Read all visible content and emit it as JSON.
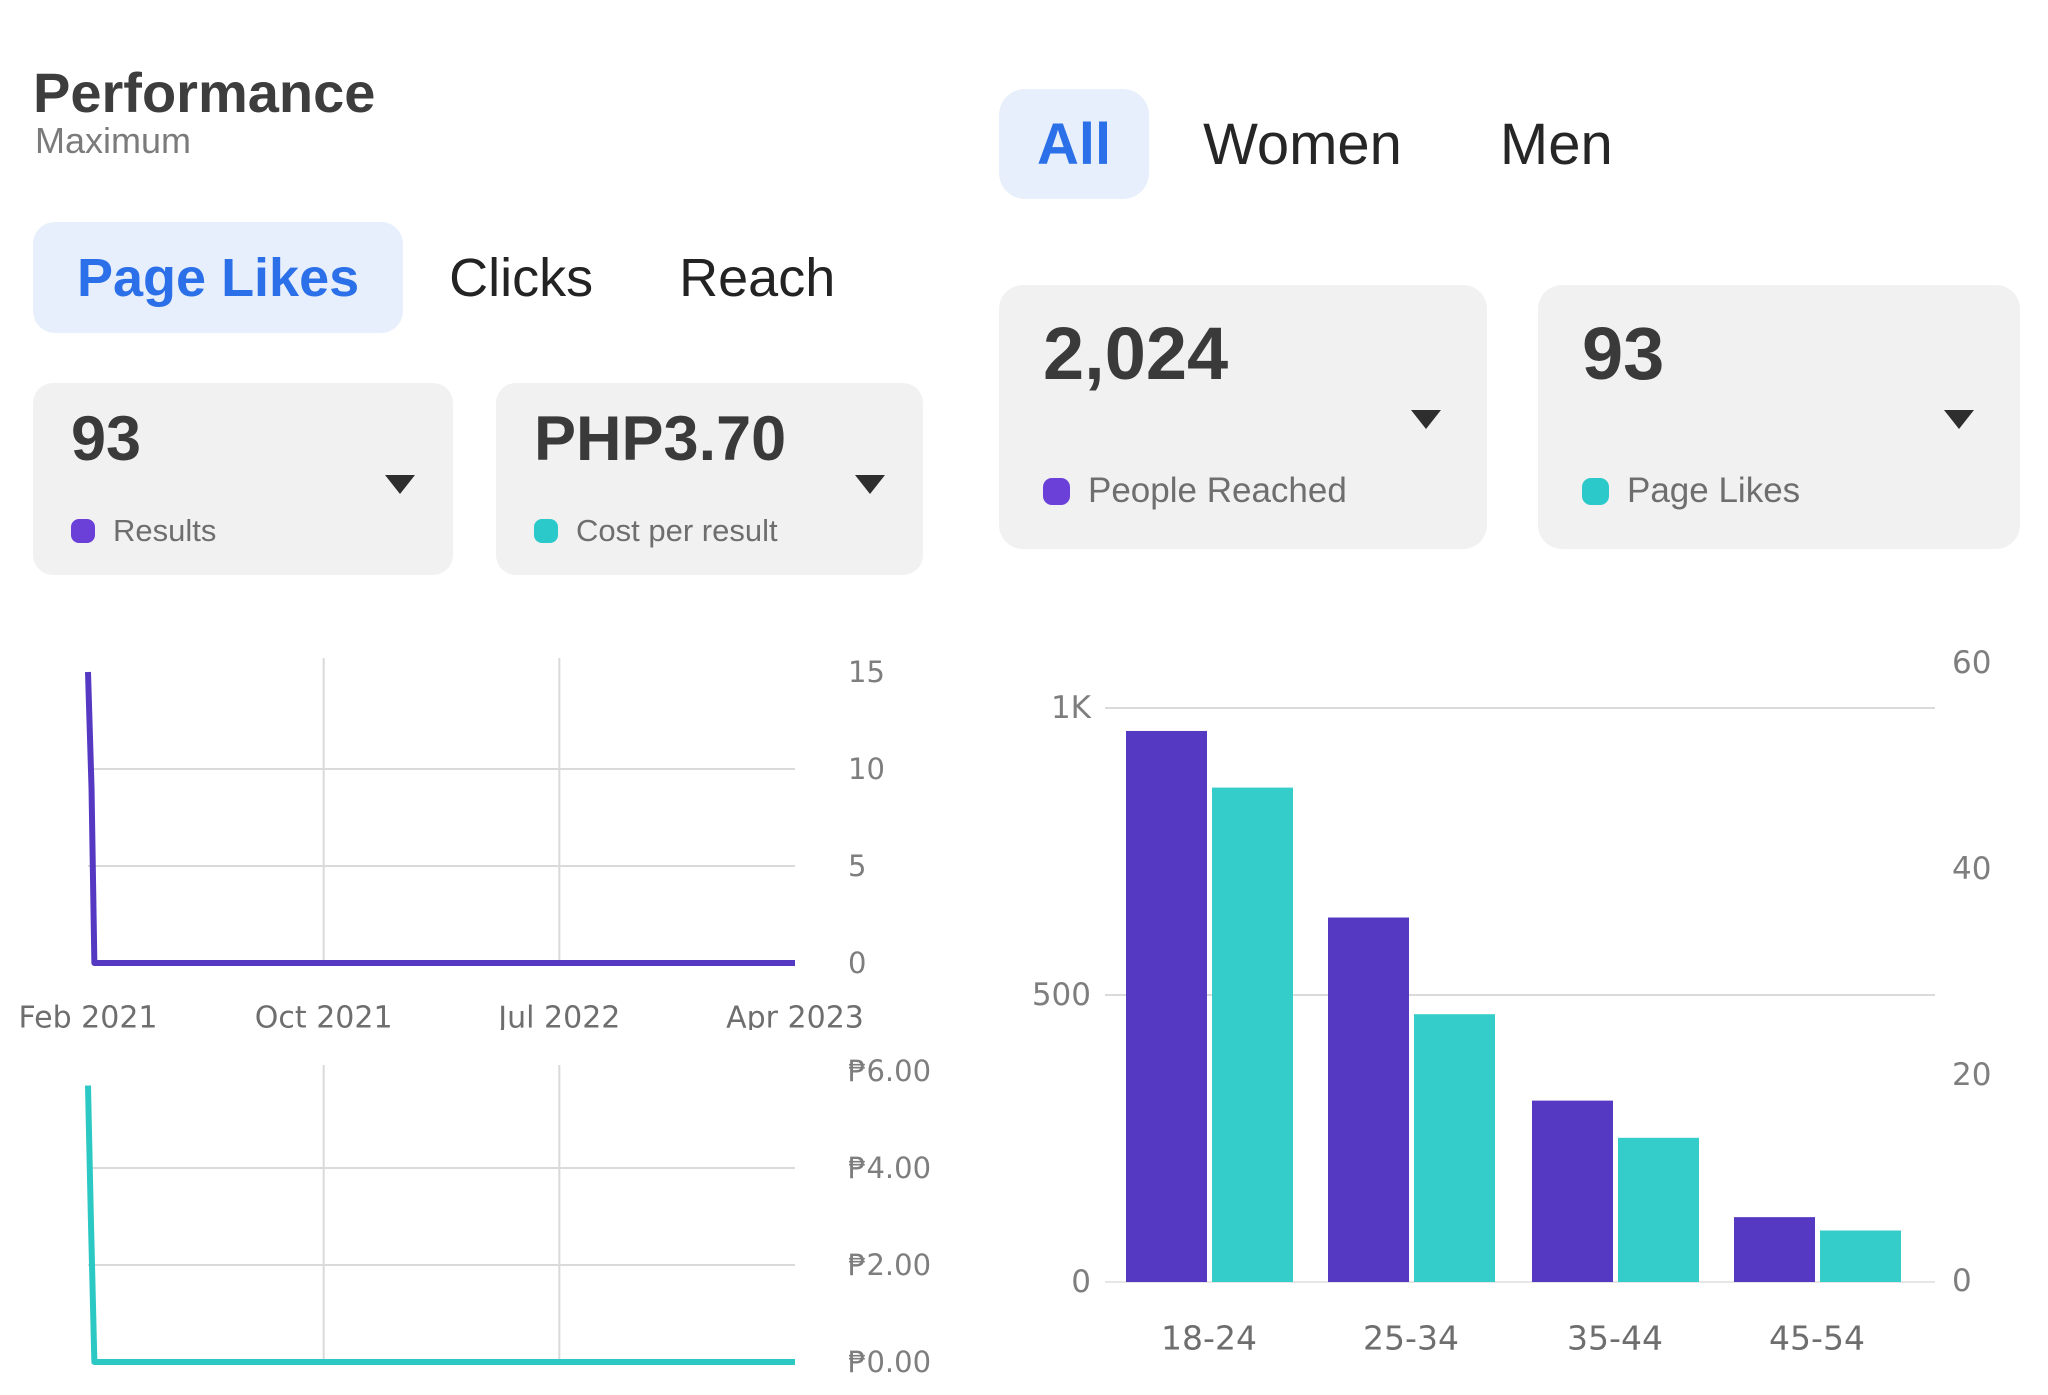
{
  "left_panel": {
    "title": "Performance",
    "subtitle": "Maximum",
    "tabs": [
      {
        "label": "Page Likes",
        "active": true
      },
      {
        "label": "Clicks",
        "active": false
      },
      {
        "label": "Reach",
        "active": false
      }
    ],
    "cards": [
      {
        "value": "93",
        "label": "Results",
        "dot_color": "#6b40d8"
      },
      {
        "value": "PHP3.70",
        "label": "Cost per result",
        "dot_color": "#2bc9c9"
      }
    ]
  },
  "right_panel": {
    "tabs": [
      {
        "label": "All",
        "active": true
      },
      {
        "label": "Women",
        "active": false
      },
      {
        "label": "Men",
        "active": false
      }
    ],
    "cards": [
      {
        "value": "2,024",
        "label": "People Reached",
        "dot_color": "#6b40d8"
      },
      {
        "value": "93",
        "label": "Page Likes",
        "dot_color": "#2bc9c9"
      }
    ]
  },
  "colors": {
    "accent_blue": "#2b70e8",
    "pill_background": "#e7effc",
    "card_background": "#f1f1f1",
    "purple_series": "#5639c2",
    "teal_series": "#35cdc9",
    "gridline": "#dadada",
    "axis_text": "#7e7e7e"
  },
  "chart_data": [
    {
      "id": "results-line",
      "type": "line",
      "series_name": "Results",
      "color": "#5639c2",
      "x_tick_labels": [
        "Feb 2021",
        "Oct 2021",
        "Jul 2022",
        "Apr 2023"
      ],
      "y_ticks": [
        15,
        10,
        5,
        0
      ],
      "y_grid": [
        10,
        5
      ],
      "ylim": [
        0,
        15
      ],
      "points_pct": [
        [
          0,
          15
        ],
        [
          0.5,
          9
        ],
        [
          0.9,
          0
        ],
        [
          100,
          0
        ]
      ],
      "reading": "Spikes to 15 at the start (Feb 2021) then drops to 0 and stays flat through Apr 2023"
    },
    {
      "id": "cost-per-result-line",
      "type": "line",
      "series_name": "Cost per result",
      "color": "#2cc8c4",
      "x_tick_labels": [
        "Feb 2021",
        "Oct 2021",
        "Jul 2022",
        "Apr 2023"
      ],
      "y_ticks": [
        6,
        4,
        2,
        0
      ],
      "y_tick_labels": [
        "₱6.00",
        "₱4.00",
        "₱2.00",
        "₱0.00"
      ],
      "y_grid": [
        4,
        2
      ],
      "ylim": [
        0,
        6
      ],
      "points_pct": [
        [
          0,
          5.7
        ],
        [
          0.4,
          3
        ],
        [
          0.9,
          0
        ],
        [
          100,
          0
        ]
      ],
      "reading": "Starts near ₱5.70 at Feb 2021 then drops to ₱0.00 and stays flat"
    },
    {
      "id": "demographics-bar",
      "type": "bar",
      "categories": [
        "18-24",
        "25-34",
        "35-44",
        "45-54"
      ],
      "series": [
        {
          "name": "People Reached",
          "axis": "left",
          "color": "#5639c2",
          "values": [
            960,
            635,
            316,
            113
          ]
        },
        {
          "name": "Page Likes",
          "axis": "right",
          "color": "#35cdc9",
          "values": [
            48,
            26,
            14,
            5
          ]
        }
      ],
      "left_axis": {
        "ticks": [
          {
            "v": 1000,
            "label": "1K"
          },
          {
            "v": 500,
            "label": "500"
          },
          {
            "v": 0,
            "label": "0"
          }
        ],
        "grid": [
          1000,
          500
        ],
        "lim": [
          0,
          1130
        ]
      },
      "right_axis": {
        "ticks": [
          {
            "v": 60,
            "label": "60"
          },
          {
            "v": 40,
            "label": "40"
          },
          {
            "v": 20,
            "label": "20"
          },
          {
            "v": 0,
            "label": "0"
          }
        ],
        "lim": [
          0,
          63
        ]
      },
      "legend_position": "none",
      "grid": "horizontal"
    }
  ]
}
